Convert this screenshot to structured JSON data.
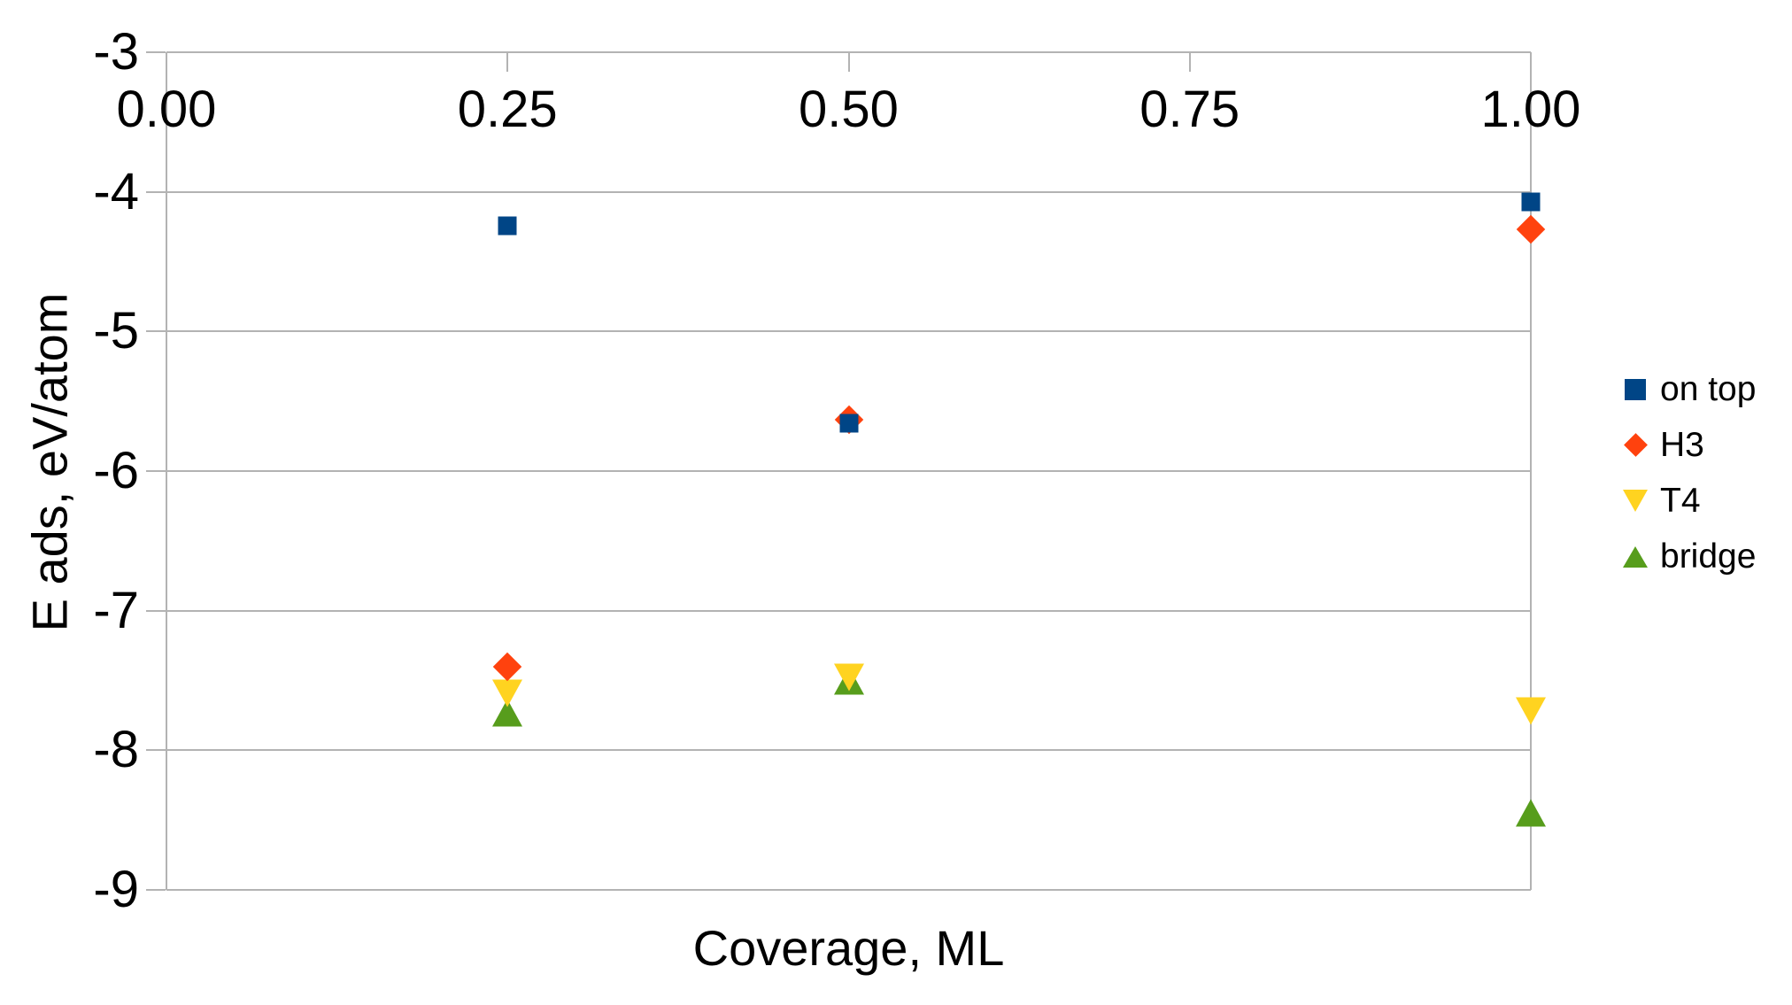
{
  "chart_data": {
    "type": "scatter",
    "title": "",
    "xlabel": "Coverage, ML",
    "ylabel": "E ads, eV/atom",
    "xlim": [
      0,
      1
    ],
    "ylim": [
      -9,
      -3
    ],
    "x_ticks": [
      "0.00",
      "0.25",
      "0.50",
      "0.75",
      "1.00"
    ],
    "x_tick_values": [
      0,
      0.25,
      0.5,
      0.75,
      1
    ],
    "y_ticks": [
      "-3",
      "-4",
      "-5",
      "-6",
      "-7",
      "-8",
      "-9"
    ],
    "y_tick_values": [
      -3,
      -4,
      -5,
      -6,
      -7,
      -8,
      -9
    ],
    "grid": true,
    "legend_position": "right",
    "series": [
      {
        "name": "on top",
        "marker": "square",
        "color": "#004586",
        "points": [
          {
            "x": 0.25,
            "y": -4.24
          },
          {
            "x": 0.5,
            "y": -5.66
          },
          {
            "x": 1,
            "y": -4.07
          }
        ]
      },
      {
        "name": "H3",
        "marker": "diamond",
        "color": "#FF420E",
        "points": [
          {
            "x": 0.25,
            "y": -7.4
          },
          {
            "x": 0.5,
            "y": -5.63
          },
          {
            "x": 1,
            "y": -4.27
          }
        ]
      },
      {
        "name": "T4",
        "marker": "triangle-down",
        "color": "#FFD320",
        "points": [
          {
            "x": 0.25,
            "y": -7.59
          },
          {
            "x": 0.5,
            "y": -7.48
          },
          {
            "x": 1,
            "y": -7.72
          }
        ]
      },
      {
        "name": "bridge",
        "marker": "triangle-up",
        "color": "#579D1C",
        "points": [
          {
            "x": 0.25,
            "y": -7.73
          },
          {
            "x": 0.5,
            "y": -7.5
          },
          {
            "x": 1,
            "y": -8.45
          }
        ]
      }
    ],
    "colors": {
      "gridline": "#B3B3B3",
      "text": "#000000",
      "background": "#FFFFFF"
    }
  }
}
